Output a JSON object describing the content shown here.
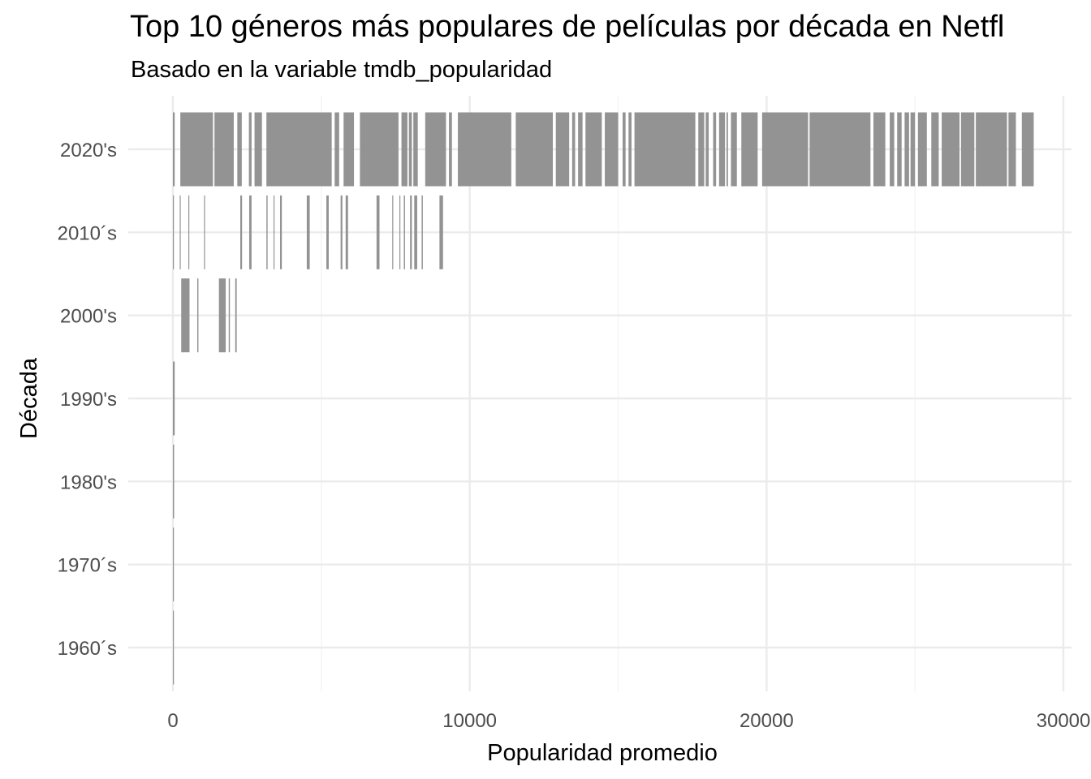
{
  "header": {
    "title": "Top 10 géneros más populares de películas por década en Netfl",
    "subtitle": "Basado en la variable tmdb_popularidad"
  },
  "chart_data": {
    "type": "bar",
    "orientation": "horizontal",
    "xlabel": "Popularidad promedio",
    "ylabel": "Década",
    "xlim": [
      -1500,
      30500
    ],
    "x_ticks": [
      0,
      10000,
      20000,
      30000
    ],
    "x_tick_labels": [
      "0",
      "10000",
      "20000",
      "30000"
    ],
    "grid": true,
    "bar_color": "#939393",
    "categories": [
      "1960´s",
      "1970´s",
      "1980's",
      "1990's",
      "2000's",
      "2010´s",
      "2020's"
    ],
    "values": [
      10,
      25,
      40,
      60,
      2150,
      9100,
      29000
    ],
    "segments": [
      {
        "decade": "1960´s",
        "ranges": [
          [
            0,
            10
          ]
        ]
      },
      {
        "decade": "1970´s",
        "ranges": [
          [
            0,
            25
          ]
        ]
      },
      {
        "decade": "1980's",
        "ranges": [
          [
            0,
            40
          ]
        ]
      },
      {
        "decade": "1990's",
        "ranges": [
          [
            0,
            60
          ]
        ]
      },
      {
        "decade": "2000's",
        "ranges": [
          [
            280,
            560
          ],
          [
            820,
            860
          ],
          [
            1550,
            1780
          ],
          [
            1880,
            1920
          ],
          [
            2100,
            2150
          ]
        ]
      },
      {
        "decade": "2010´s",
        "ranges": [
          [
            0,
            20
          ],
          [
            230,
            250
          ],
          [
            520,
            540
          ],
          [
            1050,
            1070
          ],
          [
            2270,
            2330
          ],
          [
            2570,
            2650
          ],
          [
            3150,
            3190
          ],
          [
            3390,
            3410
          ],
          [
            3610,
            3670
          ],
          [
            4510,
            4610
          ],
          [
            5170,
            5250
          ],
          [
            5650,
            5710
          ],
          [
            5820,
            5900
          ],
          [
            6860,
            6960
          ],
          [
            7390,
            7410
          ],
          [
            7630,
            7660
          ],
          [
            7780,
            7820
          ],
          [
            7990,
            8050
          ],
          [
            8130,
            8230
          ],
          [
            8380,
            8420
          ],
          [
            8980,
            9100
          ]
        ]
      },
      {
        "decade": "2020's",
        "ranges": [
          [
            0,
            60
          ],
          [
            250,
            1350
          ],
          [
            1400,
            2050
          ],
          [
            2170,
            2320
          ],
          [
            2560,
            2650
          ],
          [
            2750,
            3000
          ],
          [
            3150,
            5350
          ],
          [
            5450,
            5600
          ],
          [
            5750,
            6100
          ],
          [
            6300,
            7600
          ],
          [
            7700,
            7900
          ],
          [
            7950,
            8050
          ],
          [
            8100,
            8250
          ],
          [
            8500,
            9200
          ],
          [
            9300,
            9400
          ],
          [
            9600,
            11400
          ],
          [
            11550,
            12800
          ],
          [
            12900,
            13350
          ],
          [
            13450,
            13550
          ],
          [
            13650,
            13800
          ],
          [
            13900,
            14450
          ],
          [
            14550,
            15000
          ],
          [
            15150,
            15250
          ],
          [
            15350,
            15450
          ],
          [
            15550,
            17600
          ],
          [
            17700,
            17900
          ],
          [
            17950,
            18050
          ],
          [
            18200,
            18300
          ],
          [
            18400,
            18600
          ],
          [
            18650,
            18700
          ],
          [
            18800,
            19000
          ],
          [
            19150,
            19700
          ],
          [
            19850,
            21400
          ],
          [
            21450,
            23500
          ],
          [
            23600,
            24000
          ],
          [
            24150,
            24300
          ],
          [
            24400,
            24550
          ],
          [
            24650,
            24800
          ],
          [
            24850,
            25000
          ],
          [
            25100,
            25400
          ],
          [
            25550,
            25800
          ],
          [
            25900,
            26500
          ],
          [
            26550,
            27000
          ],
          [
            27050,
            28100
          ],
          [
            28150,
            28400
          ],
          [
            28600,
            29000
          ]
        ]
      }
    ]
  }
}
